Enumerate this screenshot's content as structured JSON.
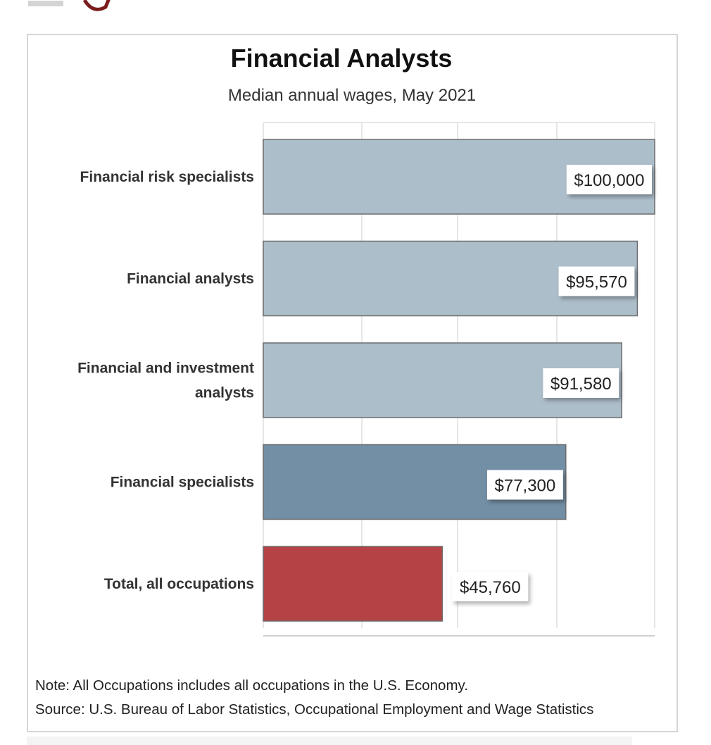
{
  "chart_data": {
    "type": "bar",
    "orientation": "horizontal",
    "title": "Financial Analysts",
    "subtitle": "Median annual wages, May 2021",
    "categories": [
      "Financial risk specialists",
      "Financial analysts",
      "Financial and investment analysts",
      "Financial specialists",
      "Total, all occupations"
    ],
    "category_lines": [
      [
        "Financial risk specialists"
      ],
      [
        "Financial analysts"
      ],
      [
        "Financial and investment",
        "analysts"
      ],
      [
        "Financial specialists"
      ],
      [
        "Total, all occupations"
      ]
    ],
    "values": [
      100000,
      95570,
      91580,
      77300,
      45760
    ],
    "value_labels": [
      "$100,000",
      "$95,570",
      "$91,580",
      "$77,300",
      "$45,760"
    ],
    "bar_colors": [
      "#adbecb",
      "#adbecb",
      "#adbecb",
      "#738fa5",
      "#b54244"
    ],
    "xlim": [
      0,
      100000
    ],
    "grid": true,
    "legend": "none",
    "xlabel": "",
    "ylabel": ""
  },
  "notes": {
    "note": "Note: All Occupations includes all occupations in the U.S. Economy.",
    "source": "Source: U.S. Bureau of Labor Statistics, Occupational Employment and Wage Statistics"
  }
}
